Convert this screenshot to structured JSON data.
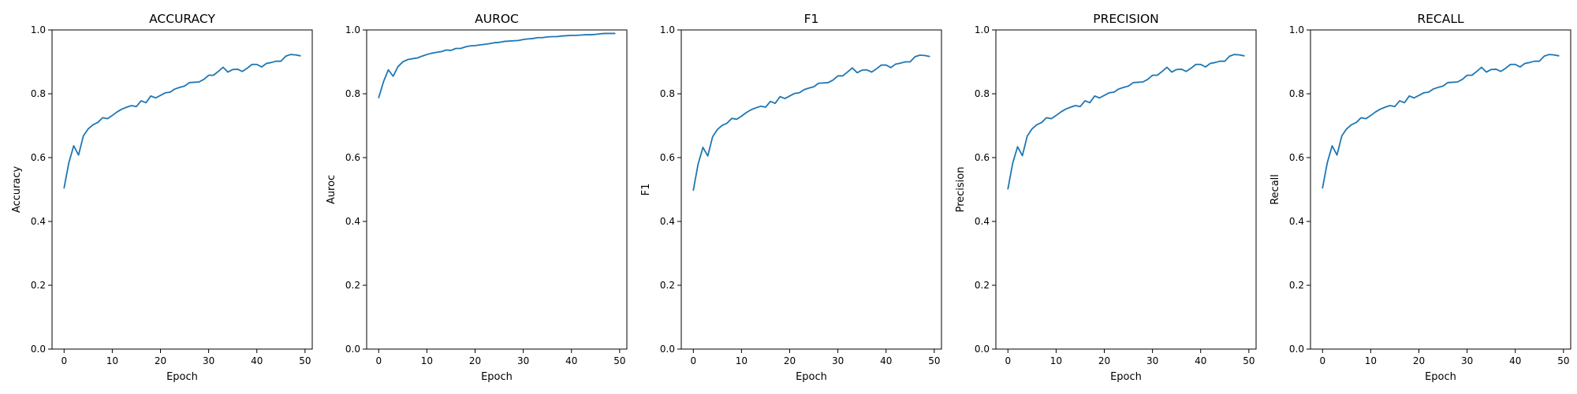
{
  "chart_data": [
    {
      "type": "line",
      "title": "ACCURACY",
      "xlabel": "Epoch",
      "ylabel": "Accuracy",
      "xlim": [
        -2.5,
        51.5
      ],
      "ylim": [
        0,
        1
      ],
      "xticks": [
        "0",
        "10",
        "20",
        "30",
        "40",
        "50"
      ],
      "yticks": [
        "0.0",
        "0.2",
        "0.4",
        "0.6",
        "0.8",
        "1.0"
      ],
      "grid": false,
      "color": "#1f77b4",
      "series": [
        {
          "values": [
            0.505,
            0.585,
            0.637,
            0.608,
            0.668,
            0.69,
            0.703,
            0.71,
            0.725,
            0.722,
            0.732,
            0.743,
            0.752,
            0.758,
            0.763,
            0.76,
            0.778,
            0.772,
            0.793,
            0.787,
            0.795,
            0.803,
            0.805,
            0.815,
            0.82,
            0.824,
            0.835,
            0.836,
            0.837,
            0.845,
            0.858,
            0.858,
            0.87,
            0.883,
            0.868,
            0.876,
            0.877,
            0.87,
            0.88,
            0.892,
            0.892,
            0.884,
            0.895,
            0.898,
            0.902,
            0.902,
            0.918,
            0.923,
            0.922,
            0.919
          ]
        }
      ]
    },
    {
      "type": "line",
      "title": "AUROC",
      "xlabel": "Epoch",
      "ylabel": "Auroc",
      "xlim": [
        -2.5,
        51.5
      ],
      "ylim": [
        0,
        1
      ],
      "xticks": [
        "0",
        "10",
        "20",
        "30",
        "40",
        "50"
      ],
      "yticks": [
        "0.0",
        "0.2",
        "0.4",
        "0.6",
        "0.8",
        "1.0"
      ],
      "grid": false,
      "color": "#1f77b4",
      "series": [
        {
          "values": [
            0.788,
            0.838,
            0.875,
            0.855,
            0.885,
            0.9,
            0.907,
            0.91,
            0.912,
            0.918,
            0.923,
            0.927,
            0.93,
            0.932,
            0.937,
            0.936,
            0.942,
            0.942,
            0.947,
            0.95,
            0.951,
            0.953,
            0.955,
            0.957,
            0.96,
            0.961,
            0.964,
            0.965,
            0.966,
            0.967,
            0.97,
            0.972,
            0.973,
            0.976,
            0.976,
            0.978,
            0.979,
            0.979,
            0.981,
            0.982,
            0.983,
            0.983,
            0.984,
            0.985,
            0.985,
            0.986,
            0.988,
            0.989,
            0.989,
            0.989
          ]
        }
      ]
    },
    {
      "type": "line",
      "title": "F1",
      "xlabel": "Epoch",
      "ylabel": "F1",
      "xlim": [
        -2.5,
        51.5
      ],
      "ylim": [
        0,
        1
      ],
      "xticks": [
        "0",
        "10",
        "20",
        "30",
        "40",
        "50"
      ],
      "yticks": [
        "0.0",
        "0.2",
        "0.4",
        "0.6",
        "0.8",
        "1.0"
      ],
      "grid": false,
      "color": "#1f77b4",
      "series": [
        {
          "values": [
            0.498,
            0.58,
            0.632,
            0.605,
            0.665,
            0.688,
            0.701,
            0.708,
            0.723,
            0.72,
            0.73,
            0.741,
            0.75,
            0.756,
            0.761,
            0.758,
            0.776,
            0.77,
            0.791,
            0.785,
            0.793,
            0.801,
            0.803,
            0.813,
            0.818,
            0.822,
            0.833,
            0.834,
            0.835,
            0.843,
            0.856,
            0.856,
            0.868,
            0.881,
            0.866,
            0.874,
            0.875,
            0.868,
            0.878,
            0.89,
            0.89,
            0.882,
            0.893,
            0.896,
            0.9,
            0.9,
            0.916,
            0.921,
            0.92,
            0.917
          ]
        }
      ]
    },
    {
      "type": "line",
      "title": "PRECISION",
      "xlabel": "Epoch",
      "ylabel": "Precision",
      "xlim": [
        -2.5,
        51.5
      ],
      "ylim": [
        0,
        1
      ],
      "xticks": [
        "0",
        "10",
        "20",
        "30",
        "40",
        "50"
      ],
      "yticks": [
        "0.0",
        "0.2",
        "0.4",
        "0.6",
        "0.8",
        "1.0"
      ],
      "grid": false,
      "color": "#1f77b4",
      "series": [
        {
          "values": [
            0.502,
            0.583,
            0.634,
            0.606,
            0.667,
            0.69,
            0.703,
            0.71,
            0.725,
            0.722,
            0.732,
            0.743,
            0.752,
            0.758,
            0.763,
            0.76,
            0.778,
            0.772,
            0.793,
            0.787,
            0.795,
            0.803,
            0.805,
            0.815,
            0.82,
            0.824,
            0.835,
            0.836,
            0.837,
            0.845,
            0.858,
            0.858,
            0.87,
            0.883,
            0.868,
            0.876,
            0.877,
            0.87,
            0.88,
            0.892,
            0.892,
            0.884,
            0.895,
            0.898,
            0.902,
            0.902,
            0.918,
            0.923,
            0.922,
            0.919
          ]
        }
      ]
    },
    {
      "type": "line",
      "title": "RECALL",
      "xlabel": "Epoch",
      "ylabel": "Recall",
      "xlim": [
        -2.5,
        51.5
      ],
      "ylim": [
        0,
        1
      ],
      "xticks": [
        "0",
        "10",
        "20",
        "30",
        "40",
        "50"
      ],
      "yticks": [
        "0.0",
        "0.2",
        "0.4",
        "0.6",
        "0.8",
        "1.0"
      ],
      "grid": false,
      "color": "#1f77b4",
      "series": [
        {
          "values": [
            0.505,
            0.585,
            0.637,
            0.608,
            0.668,
            0.69,
            0.703,
            0.71,
            0.725,
            0.722,
            0.732,
            0.743,
            0.752,
            0.758,
            0.763,
            0.76,
            0.778,
            0.772,
            0.793,
            0.787,
            0.795,
            0.803,
            0.805,
            0.815,
            0.82,
            0.824,
            0.835,
            0.836,
            0.837,
            0.845,
            0.858,
            0.858,
            0.87,
            0.883,
            0.868,
            0.876,
            0.877,
            0.87,
            0.88,
            0.892,
            0.892,
            0.884,
            0.895,
            0.898,
            0.902,
            0.902,
            0.918,
            0.923,
            0.922,
            0.919
          ]
        }
      ]
    }
  ]
}
